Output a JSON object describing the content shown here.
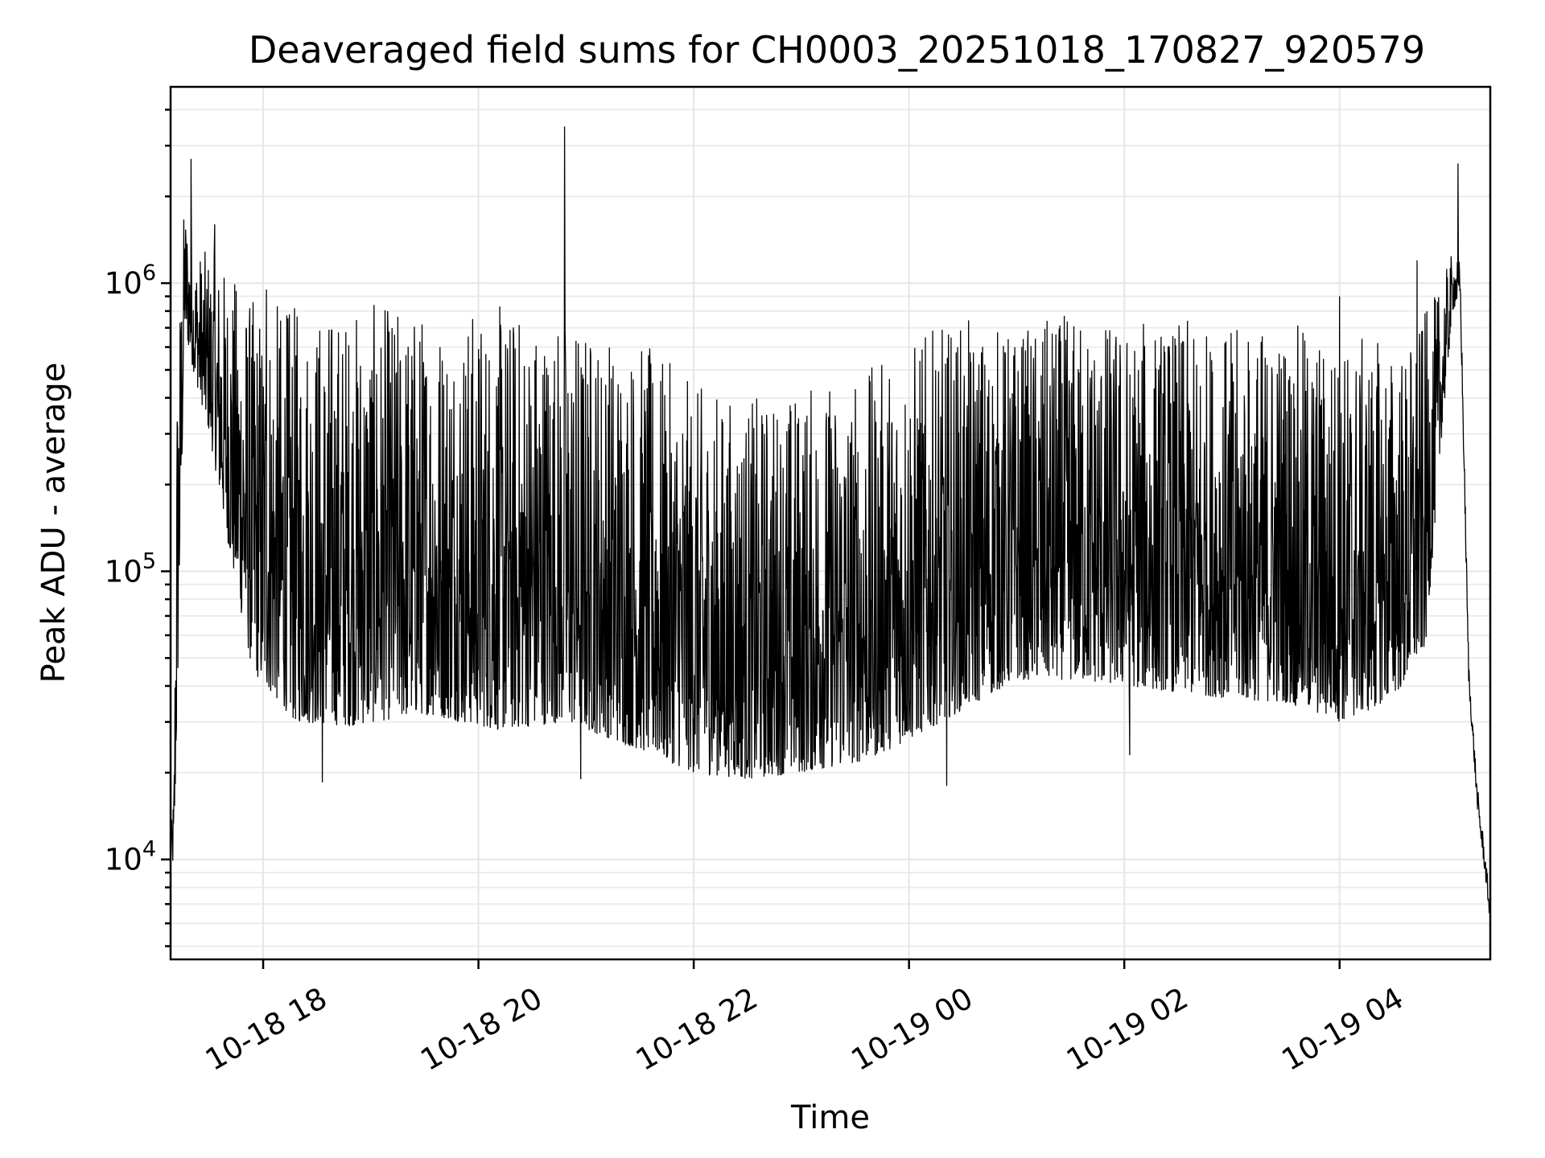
{
  "chart_data": {
    "type": "line",
    "title": "Deaveraged field sums for CH0003_20251018_170827_920579",
    "xlabel": "Time",
    "ylabel": "Peak ADU - average",
    "yscale": "log",
    "ylim": [
      4500,
      4800000
    ],
    "xlim_hours": [
      17.14,
      29.4
    ],
    "grid": true,
    "legend": "none",
    "x_ticks": [
      {
        "hour": 18,
        "label": "10-18 18"
      },
      {
        "hour": 20,
        "label": "10-18 20"
      },
      {
        "hour": 22,
        "label": "10-18 22"
      },
      {
        "hour": 24,
        "label": "10-19 00"
      },
      {
        "hour": 26,
        "label": "10-19 02"
      },
      {
        "hour": 28,
        "label": "10-19 04"
      }
    ],
    "y_ticks": [
      {
        "value": 10000,
        "base": "10",
        "exp": "4"
      },
      {
        "value": 100000,
        "base": "10",
        "exp": "5"
      },
      {
        "value": 1000000,
        "base": "10",
        "exp": "6"
      }
    ],
    "series": [
      {
        "name": "Peak ADU - average",
        "color": "#000000",
        "envelope": {
          "hours": [
            17.14,
            17.17,
            17.2,
            17.27,
            17.35,
            17.5,
            17.7,
            17.9,
            18.3,
            18.8,
            19.5,
            20.2,
            20.8,
            21.5,
            22.0,
            22.5,
            23.0,
            23.6,
            24.0,
            24.5,
            25.0,
            25.5,
            26.0,
            26.5,
            27.0,
            27.5,
            28.0,
            28.3,
            28.6,
            28.8,
            28.95,
            29.05,
            29.12,
            29.2,
            29.28,
            29.35,
            29.4
          ],
          "low": [
            10000,
            9500,
            30000,
            700000,
            500000,
            300000,
            110000,
            45000,
            30000,
            29000,
            32000,
            28000,
            30000,
            24000,
            20000,
            19000,
            20000,
            22000,
            26000,
            33000,
            42000,
            42000,
            40000,
            38000,
            36000,
            35000,
            30000,
            33000,
            40000,
            55000,
            300000,
            800000,
            900000,
            40000,
            15000,
            9000,
            6000
          ],
          "high": [
            12000,
            18000,
            600000,
            2000000,
            1300000,
            1300000,
            1100000,
            900000,
            850000,
            850000,
            850000,
            850000,
            800000,
            650000,
            450000,
            400000,
            450000,
            500000,
            650000,
            750000,
            700000,
            800000,
            750000,
            750000,
            700000,
            750000,
            650000,
            650000,
            600000,
            800000,
            1000000,
            1300000,
            1200000,
            50000,
            18000,
            11000,
            7000
          ]
        },
        "spikes": [
          {
            "hour": 17.33,
            "value": 2700000
          },
          {
            "hour": 17.55,
            "value": 1600000
          },
          {
            "hour": 18.03,
            "value": 950000
          },
          {
            "hour": 18.55,
            "value": 18500
          },
          {
            "hour": 20.8,
            "value": 3500000
          },
          {
            "hour": 20.95,
            "value": 19000
          },
          {
            "hour": 24.35,
            "value": 18000
          },
          {
            "hour": 26.05,
            "value": 23000
          },
          {
            "hour": 28.0,
            "value": 900000
          },
          {
            "hour": 28.72,
            "value": 1200000
          },
          {
            "hour": 29.1,
            "value": 2600000
          }
        ]
      }
    ]
  }
}
